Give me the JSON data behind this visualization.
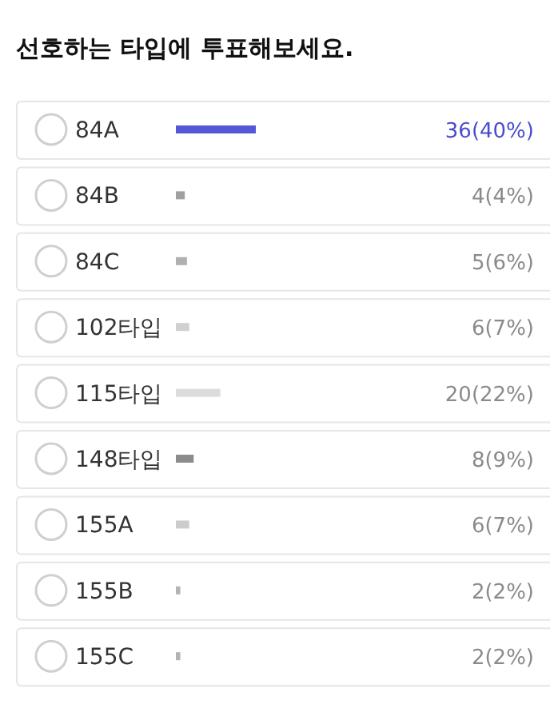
{
  "chart_data": {
    "type": "bar",
    "orientation": "horizontal",
    "title": "선호하는 타입에 투표해보세요.",
    "categories": [
      "84A",
      "84B",
      "84C",
      "102타입",
      "115타입",
      "148타입",
      "155A",
      "155B",
      "155C"
    ],
    "values": [
      36,
      4,
      5,
      6,
      20,
      8,
      6,
      2,
      2
    ],
    "value_labels": [
      "36(40%)",
      "4(4%)",
      "5(6%)",
      "6(7%)",
      "20(22%)",
      "8(9%)",
      "6(7%)",
      "2(2%)",
      "2(2%)"
    ],
    "colors": [
      "#5558d4",
      "#a0a0a0",
      "#b0b0b0",
      "#d0d0d0",
      "#dcdcdc",
      "#8c8c8c",
      "#cccccc",
      "#b4b4b4",
      "#b4b4b4"
    ]
  }
}
